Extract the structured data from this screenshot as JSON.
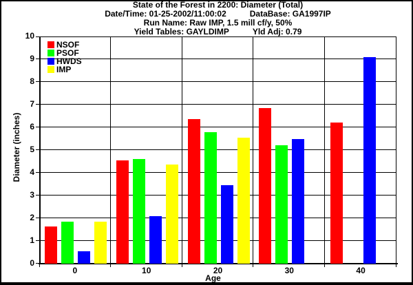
{
  "header": {
    "title": "State of the Forest in 2200: Diameter (Total)",
    "datetime": "Date/Time: 01-25-2002/11:00:02",
    "database": "DataBase: GA1997IP",
    "run_name": "Run Name: Raw IMP, 1.5 mill cf/y, 50%",
    "yield_tables": "Yield Tables: GAYLDIMP",
    "yield_adjustment": "Yld Adj: 0.79"
  },
  "colors": {
    "background": "#FFFFFF",
    "frame": "#000000",
    "text": "#000000"
  },
  "chart_data": {
    "type": "bar",
    "title": "State of the Forest in 2200: Diameter (Total)",
    "categories": [
      "0",
      "10",
      "20",
      "30",
      "40"
    ],
    "series": [
      {
        "name": "NSOF",
        "color": "#FF0000",
        "values": [
          1.65,
          4.55,
          6.35,
          6.85,
          6.2
        ]
      },
      {
        "name": "PSOF",
        "color": "#00FF00",
        "values": [
          1.85,
          4.6,
          5.8,
          5.2,
          null
        ]
      },
      {
        "name": "HWDS",
        "color": "#0000FF",
        "values": [
          0.55,
          2.1,
          3.45,
          5.5,
          9.1
        ]
      },
      {
        "name": "IMP",
        "color": "#FFFF00",
        "values": [
          1.85,
          4.35,
          5.55,
          null,
          null
        ]
      }
    ],
    "xlabel": "Age",
    "ylabel": "Diameter (inches)",
    "ylim": [
      0,
      10
    ],
    "ytick_step": 1,
    "grid": true,
    "legend_position": "top-left-inside"
  }
}
